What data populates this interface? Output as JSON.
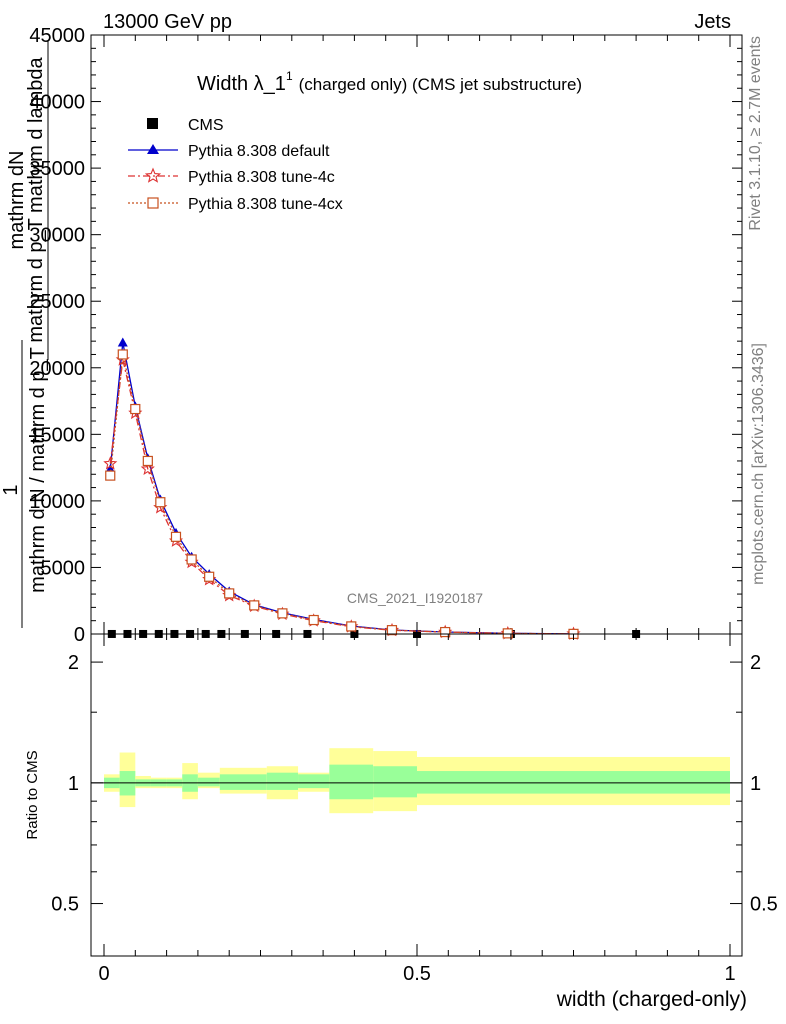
{
  "header": {
    "energy_label": "13000 GeV pp",
    "process_label": "Jets"
  },
  "side": {
    "rivet_label": "Rivet 3.1.10, ≥ 2.7M events",
    "mcplots_label": "mcplots.cern.ch [arXiv:1306.3436]"
  },
  "watermark": "CMS_2021_I1920187",
  "chart_data": [
    {
      "type": "line",
      "title": "Width λ_1¹ (charged only) (CMS jet substructure)",
      "title_main": "Width λ_1",
      "title_sup": "1",
      "title_rest": "(charged only) (CMS jet substructure)",
      "ylabel_lines": [
        "mathrm dN",
        "mathrm d p_T mathrm d lambda",
        "1",
        "mathrm d N / mathrm d p_T"
      ],
      "ylim": [
        0,
        45000
      ],
      "yticks": [
        0,
        5000,
        10000,
        15000,
        20000,
        25000,
        30000,
        35000,
        40000,
        45000
      ],
      "xlim": [
        -0.025,
        1.025
      ],
      "legend_position": "top-left",
      "series": [
        {
          "name": "CMS",
          "color": "#000000",
          "marker": "square",
          "x": [
            0.0125,
            0.0375,
            0.0625,
            0.0875,
            0.1125,
            0.1375,
            0.1625,
            0.1875,
            0.225,
            0.275,
            0.325,
            0.4,
            0.5,
            0.65,
            0.85
          ],
          "values": [
            2,
            2,
            2,
            2,
            2,
            2,
            2,
            2,
            2,
            2,
            2,
            2,
            1,
            0.3,
            0.03
          ]
        },
        {
          "name": "Pythia 8.308 default",
          "color": "#0000cc",
          "marker": "triangle",
          "x": [
            0.01,
            0.03,
            0.05,
            0.07,
            0.09,
            0.115,
            0.14,
            0.168,
            0.2,
            0.24,
            0.285,
            0.335,
            0.395,
            0.46,
            0.545,
            0.645,
            0.75
          ],
          "values": [
            12400,
            21900,
            17100,
            13200,
            10100,
            7600,
            5800,
            4500,
            3200,
            2200,
            1600,
            1100,
            600,
            300,
            150,
            50,
            10
          ]
        },
        {
          "name": "Pythia 8.308 tune-4c",
          "color": "#dd3333",
          "marker": "star",
          "x": [
            0.01,
            0.03,
            0.05,
            0.07,
            0.09,
            0.115,
            0.14,
            0.168,
            0.2,
            0.24,
            0.285,
            0.335,
            0.395,
            0.46,
            0.545,
            0.645,
            0.75
          ],
          "values": [
            12800,
            20600,
            16600,
            12400,
            9500,
            7000,
            5400,
            4100,
            2900,
            2100,
            1500,
            1000,
            550,
            280,
            140,
            45,
            10
          ]
        },
        {
          "name": "Pythia 8.308 tune-4cx",
          "color": "#c8501e",
          "marker": "open-square",
          "x": [
            0.01,
            0.03,
            0.05,
            0.07,
            0.09,
            0.115,
            0.14,
            0.168,
            0.2,
            0.24,
            0.285,
            0.335,
            0.395,
            0.46,
            0.545,
            0.645,
            0.75
          ],
          "values": [
            11900,
            21000,
            16900,
            13000,
            9900,
            7300,
            5600,
            4300,
            3050,
            2150,
            1550,
            1050,
            570,
            290,
            145,
            48,
            10
          ]
        }
      ]
    },
    {
      "type": "area",
      "ylabel": "Ratio to CMS",
      "xlabel": "width (charged-only)",
      "ylim": [
        0.37,
        2.35
      ],
      "log_y": true,
      "yticks": [
        0.5,
        1,
        2
      ],
      "xlim": [
        -0.025,
        1.025
      ],
      "xticks": [
        0,
        0.5,
        1
      ],
      "reference_line": 1,
      "band_colors": {
        "stat": "#99ff99",
        "total": "#ffff99"
      },
      "bins": [
        {
          "lo": 0.0,
          "hi": 0.025,
          "stat": [
            0.97,
            1.03
          ],
          "total": [
            0.95,
            1.05
          ]
        },
        {
          "lo": 0.025,
          "hi": 0.05,
          "stat": [
            0.93,
            1.07
          ],
          "total": [
            0.87,
            1.19
          ]
        },
        {
          "lo": 0.05,
          "hi": 0.075,
          "stat": [
            0.98,
            1.02
          ],
          "total": [
            0.97,
            1.04
          ]
        },
        {
          "lo": 0.075,
          "hi": 0.1,
          "stat": [
            0.98,
            1.02
          ],
          "total": [
            0.97,
            1.03
          ]
        },
        {
          "lo": 0.1,
          "hi": 0.125,
          "stat": [
            0.98,
            1.02
          ],
          "total": [
            0.97,
            1.03
          ]
        },
        {
          "lo": 0.125,
          "hi": 0.15,
          "stat": [
            0.95,
            1.05
          ],
          "total": [
            0.91,
            1.12
          ]
        },
        {
          "lo": 0.15,
          "hi": 0.185,
          "stat": [
            0.98,
            1.03
          ],
          "total": [
            0.97,
            1.06
          ]
        },
        {
          "lo": 0.185,
          "hi": 0.26,
          "stat": [
            0.96,
            1.05
          ],
          "total": [
            0.94,
            1.09
          ]
        },
        {
          "lo": 0.26,
          "hi": 0.31,
          "stat": [
            0.96,
            1.06
          ],
          "total": [
            0.91,
            1.1
          ]
        },
        {
          "lo": 0.31,
          "hi": 0.36,
          "stat": [
            0.97,
            1.05
          ],
          "total": [
            0.95,
            1.06
          ]
        },
        {
          "lo": 0.36,
          "hi": 0.43,
          "stat": [
            0.91,
            1.11
          ],
          "total": [
            0.84,
            1.22
          ]
        },
        {
          "lo": 0.43,
          "hi": 0.5,
          "stat": [
            0.92,
            1.1
          ],
          "total": [
            0.85,
            1.2
          ]
        },
        {
          "lo": 0.5,
          "hi": 1.0,
          "stat": [
            0.94,
            1.07
          ],
          "total": [
            0.88,
            1.16
          ]
        }
      ]
    }
  ]
}
